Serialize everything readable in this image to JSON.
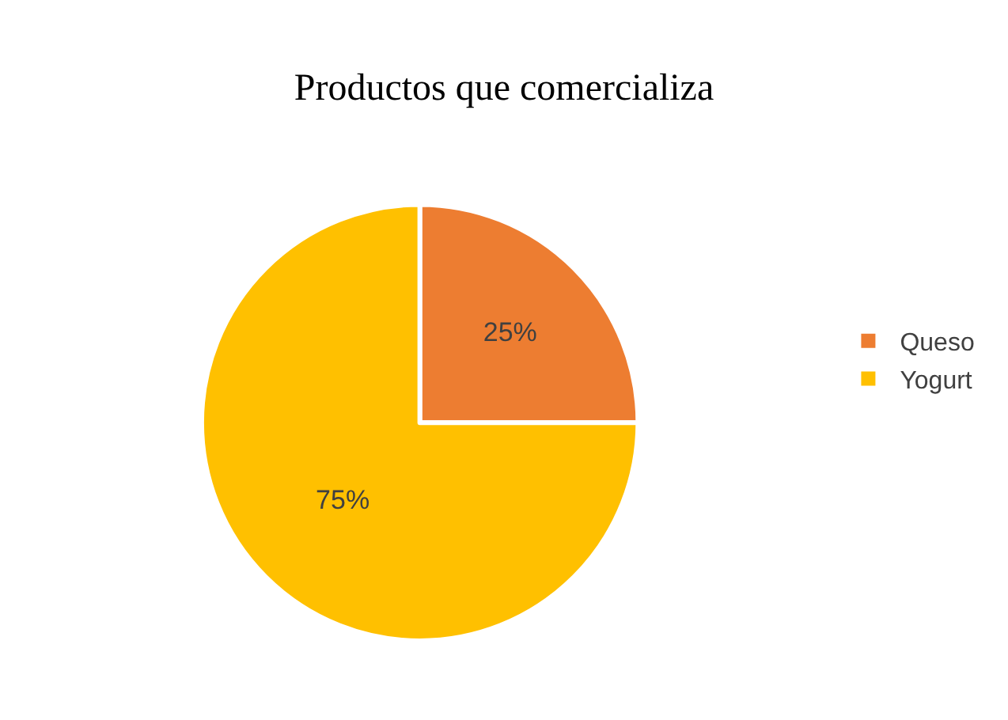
{
  "chart_data": {
    "type": "pie",
    "title": "Productos que comercializa",
    "categories": [
      "Queso",
      "Yogurt"
    ],
    "values": [
      25,
      75
    ],
    "value_labels": [
      "25%",
      "75%"
    ],
    "colors": [
      "#ed7d31",
      "#ffc000"
    ],
    "legend": "right"
  }
}
